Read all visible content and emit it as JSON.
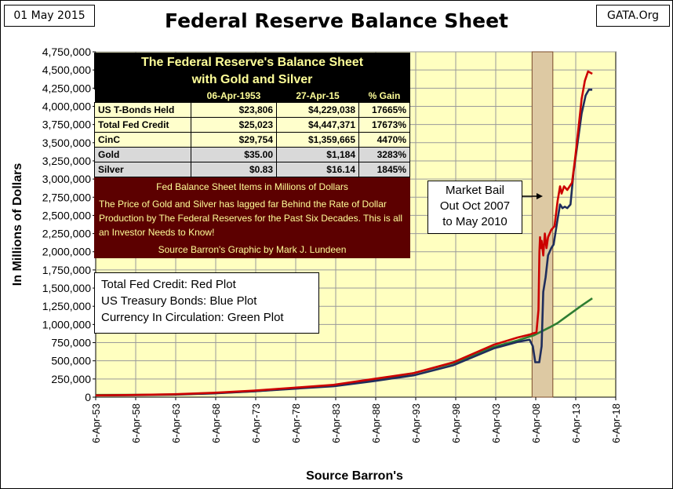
{
  "header": {
    "date_label": "01 May 2015",
    "source_label": "GATA.Org"
  },
  "chart_data": {
    "type": "line",
    "title": "Federal Reserve Balance Sheet",
    "xlabel": "Source Barron's",
    "ylabel": "In  Millions  of  Dollars",
    "ylim": [
      0,
      4750000
    ],
    "y_ticks": [
      "0",
      "250,000",
      "500,000",
      "750,000",
      "1,000,000",
      "1,250,000",
      "1,500,000",
      "1,750,000",
      "2,000,000",
      "2,250,000",
      "2,500,000",
      "2,750,000",
      "3,000,000",
      "3,250,000",
      "3,500,000",
      "3,750,000",
      "4,000,000",
      "4,250,000",
      "4,500,000",
      "4,750,000"
    ],
    "x_ticks": [
      "6-Apr-53",
      "6-Apr-58",
      "6-Apr-63",
      "6-Apr-68",
      "6-Apr-73",
      "6-Apr-78",
      "6-Apr-83",
      "6-Apr-88",
      "6-Apr-93",
      "6-Apr-98",
      "6-Apr-03",
      "6-Apr-08",
      "6-Apr-13",
      "6-Apr-18"
    ],
    "xlim": [
      1953.26,
      2018.26
    ],
    "grid": true,
    "shaded_region": {
      "from": 2007.8,
      "to": 2010.4
    },
    "series": [
      {
        "name": "Total Fed Credit",
        "color": "#cc0000",
        "x": [
          1953.26,
          1958,
          1963,
          1968,
          1973,
          1978,
          1983,
          1988,
          1993,
          1998,
          2003,
          2006,
          2007.5,
          2008.0,
          2008.35,
          2008.6,
          2008.72,
          2008.8,
          2008.9,
          2009.0,
          2009.2,
          2009.4,
          2009.6,
          2009.8,
          2010.2,
          2010.6,
          2011.0,
          2011.3,
          2011.5,
          2011.8,
          2012.2,
          2012.5,
          2012.8,
          2013.2,
          2013.6,
          2014.0,
          2014.4,
          2014.8,
          2015.33
        ],
        "y": [
          25023,
          30000,
          40000,
          60000,
          90000,
          130000,
          170000,
          250000,
          330000,
          480000,
          720000,
          820000,
          860000,
          880000,
          890000,
          1200000,
          2000000,
          2200000,
          2050000,
          2150000,
          1950000,
          2250000,
          2050000,
          2200000,
          2300000,
          2350000,
          2700000,
          2900000,
          2800000,
          2900000,
          2850000,
          2900000,
          2950000,
          3300000,
          3700000,
          4100000,
          4350000,
          4480000,
          4447371
        ]
      },
      {
        "name": "US Treasury Bonds",
        "color": "#1f2d5c",
        "x": [
          1953.26,
          1958,
          1963,
          1968,
          1973,
          1978,
          1983,
          1988,
          1993,
          1998,
          2003,
          2006,
          2007.5,
          2007.9,
          2008.2,
          2008.7,
          2009.0,
          2009.2,
          2009.5,
          2009.8,
          2010.2,
          2010.5,
          2011.0,
          2011.3,
          2011.6,
          2011.9,
          2012.2,
          2012.6,
          2013.0,
          2013.5,
          2014.0,
          2014.5,
          2014.9,
          2015.33
        ],
        "y": [
          23806,
          28000,
          35000,
          52000,
          80000,
          115000,
          150000,
          220000,
          300000,
          440000,
          670000,
          760000,
          790000,
          700000,
          480000,
          480000,
          700000,
          1450000,
          1650000,
          1950000,
          2050000,
          2100000,
          2450000,
          2650000,
          2600000,
          2620000,
          2600000,
          2650000,
          3100000,
          3500000,
          3900000,
          4150000,
          4230000,
          4229038
        ]
      },
      {
        "name": "Currency In Circulation",
        "color": "#2e7d32",
        "x": [
          1953.26,
          1958,
          1963,
          1968,
          1973,
          1978,
          1983,
          1988,
          1993,
          1998,
          2003,
          2006,
          2008,
          2010,
          2011,
          2012,
          2013,
          2014,
          2015.33
        ],
        "y": [
          29754,
          31000,
          38000,
          55000,
          82000,
          120000,
          160000,
          230000,
          330000,
          470000,
          690000,
          780000,
          850000,
          960000,
          1020000,
          1100000,
          1180000,
          1260000,
          1359665
        ]
      }
    ]
  },
  "table": {
    "title_line1": "The Federal Reserve's Balance Sheet",
    "title_line2": "with Gold and Silver",
    "columns": [
      "",
      "06-Apr-1953",
      "27-Apr-15",
      "% Gain"
    ],
    "rows": [
      {
        "label": "US T-Bonds Held",
        "v1953": "$23,806",
        "v2015": "$4,229,038",
        "gain": "17665%"
      },
      {
        "label": "Total Fed Credit",
        "v1953": "$25,023",
        "v2015": "$4,447,371",
        "gain": "17673%"
      },
      {
        "label": "CinC",
        "v1953": "$29,754",
        "v2015": "$1,359,665",
        "gain": "4470%"
      },
      {
        "label": "Gold",
        "v1953": "$35.00",
        "v2015": "$1,184",
        "gain": "3283%"
      },
      {
        "label": "Silver",
        "v1953": "$0.83",
        "v2015": "$16.14",
        "gain": "1845%"
      }
    ],
    "note_heading": "Fed Balance Sheet Items in Millions of Dollars",
    "note_body": "The Price of Gold and Silver has lagged far Behind the Rate of Dollar Production by The Federal Reserves for the Past Six Decades.  This is all an Investor Needs to Know!",
    "credit_line": "Source Barron's    Graphic by Mark J. Lundeen"
  },
  "legend": {
    "line1": "Total Fed Credit:  Red Plot",
    "line2": "US Treasury Bonds: Blue Plot",
    "line3": "Currency In Circulation: Green Plot"
  },
  "annotation": {
    "line1": "Market Bail",
    "line2": "Out Oct 2007",
    "line3": "to May 2010"
  }
}
